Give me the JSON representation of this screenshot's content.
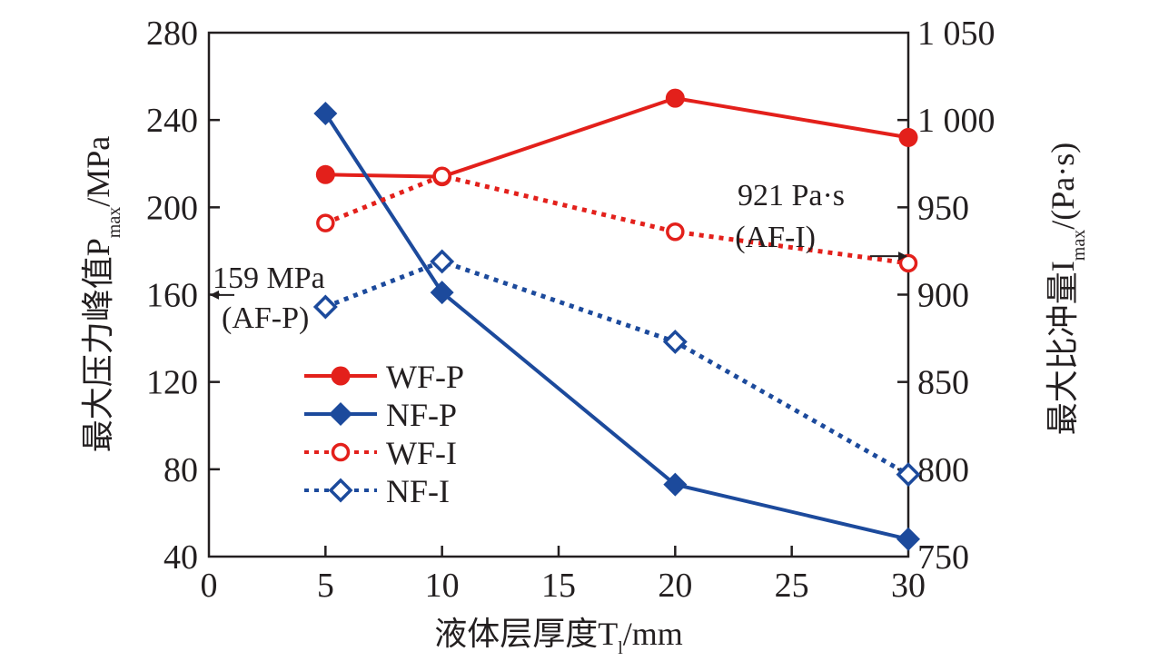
{
  "chart_data": {
    "type": "line",
    "title": "",
    "xlabel": "液体层厚度T",
    "xlabel_sub": "l",
    "xlabel_unit": "/mm",
    "ylabel_left": "最大压力峰值P",
    "ylabel_left_sub": "max",
    "ylabel_left_unit": "/MPa",
    "ylabel_right": "最大比冲量I",
    "ylabel_right_sub": "max",
    "ylabel_right_unit": "/(Pa·s)",
    "xlim": [
      0,
      30
    ],
    "ylim_left": [
      40,
      280
    ],
    "ylim_right": [
      750,
      1050
    ],
    "x_ticks": [
      0,
      5,
      10,
      15,
      20,
      25,
      30
    ],
    "x_tick_labels": [
      "0",
      "5",
      "10",
      "15",
      "20",
      "25",
      "30"
    ],
    "y_left_ticks": [
      40,
      80,
      120,
      160,
      200,
      240,
      280
    ],
    "y_left_tick_labels": [
      "40",
      "80",
      "120",
      "160",
      "200",
      "240",
      "280"
    ],
    "y_right_ticks": [
      750,
      800,
      850,
      900,
      950,
      1000,
      1050
    ],
    "y_right_tick_labels": [
      "750",
      "800",
      "850",
      "900",
      "950",
      "1 000",
      "1 050"
    ],
    "grid": false,
    "legend_position": "center-left",
    "x": [
      5,
      10,
      20,
      30
    ],
    "series": [
      {
        "name": "WF-P",
        "axis": "left",
        "color": "#e3201b",
        "marker": "circle-filled",
        "line": "solid",
        "values": [
          215,
          214,
          250,
          232
        ]
      },
      {
        "name": "NF-P",
        "axis": "left",
        "color": "#1c4a9c",
        "marker": "diamond-filled",
        "line": "solid",
        "values": [
          243,
          161,
          73,
          48
        ]
      },
      {
        "name": "WF-I",
        "axis": "right",
        "color": "#e3201b",
        "marker": "circle-open",
        "line": "dotted",
        "values": [
          941,
          968,
          936,
          918
        ]
      },
      {
        "name": "NF-I",
        "axis": "right",
        "color": "#1c4a9c",
        "marker": "diamond-open",
        "line": "dotted",
        "values": [
          893,
          919,
          873,
          797
        ]
      }
    ],
    "annotations": [
      {
        "name": "af-p",
        "line1": "159 MPa",
        "line2": "(AF-P)",
        "axis": "left",
        "value": 159,
        "arrow": "left"
      },
      {
        "name": "af-i",
        "line1": "921 Pa·s",
        "line2": "(AF-I)",
        "axis": "right",
        "value": 921,
        "arrow": "right"
      }
    ]
  }
}
